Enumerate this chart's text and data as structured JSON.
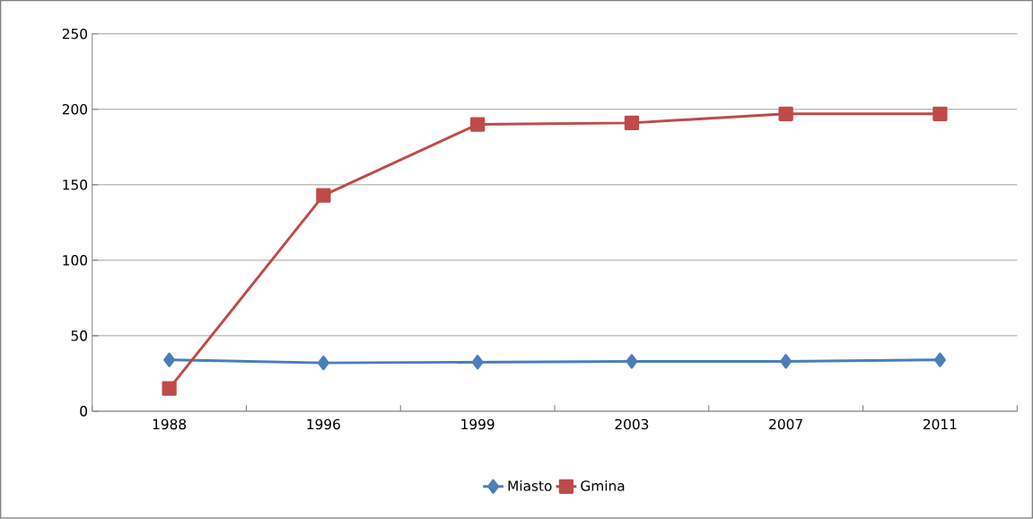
{
  "chart_data": {
    "type": "line",
    "categories": [
      "1988",
      "1996",
      "1999",
      "2003",
      "2007",
      "2011"
    ],
    "series": [
      {
        "name": "Miasto",
        "color": "#4a7ebb",
        "marker": "diamond",
        "values": [
          34,
          32,
          32.5,
          33,
          33,
          34
        ]
      },
      {
        "name": "Gmina",
        "color": "#be4b48",
        "marker": "square",
        "values": [
          15,
          143,
          190,
          191,
          197,
          197
        ]
      }
    ],
    "ylim": [
      0,
      250
    ],
    "yticks": [
      0,
      50,
      100,
      150,
      200,
      250
    ],
    "grid": "y",
    "legend": "bottom",
    "line_style": "solid"
  }
}
